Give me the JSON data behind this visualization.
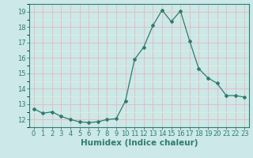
{
  "x": [
    0,
    1,
    2,
    3,
    4,
    5,
    6,
    7,
    8,
    9,
    10,
    11,
    12,
    13,
    14,
    15,
    16,
    17,
    18,
    19,
    20,
    21,
    22,
    23
  ],
  "y": [
    12.7,
    12.4,
    12.5,
    12.2,
    12.0,
    11.85,
    11.8,
    11.85,
    12.0,
    12.05,
    13.2,
    15.9,
    16.7,
    18.1,
    19.1,
    18.35,
    19.05,
    17.1,
    15.3,
    14.7,
    14.35,
    13.55,
    13.55,
    13.45
  ],
  "xlabel": "Humidex (Indice chaleur)",
  "line_color": "#2e7d6e",
  "marker": "D",
  "marker_size": 2.0,
  "bg_color": "#cce8e8",
  "grid_major_color": "#e8b8b8",
  "grid_minor_color": "#ddeedd",
  "ylim": [
    11.5,
    19.5
  ],
  "yticks": [
    12,
    13,
    14,
    15,
    16,
    17,
    18,
    19
  ],
  "xticks": [
    0,
    1,
    2,
    3,
    4,
    5,
    6,
    7,
    8,
    9,
    10,
    11,
    12,
    13,
    14,
    15,
    16,
    17,
    18,
    19,
    20,
    21,
    22,
    23
  ],
  "tick_label_fontsize": 6,
  "xlabel_fontsize": 7.5
}
